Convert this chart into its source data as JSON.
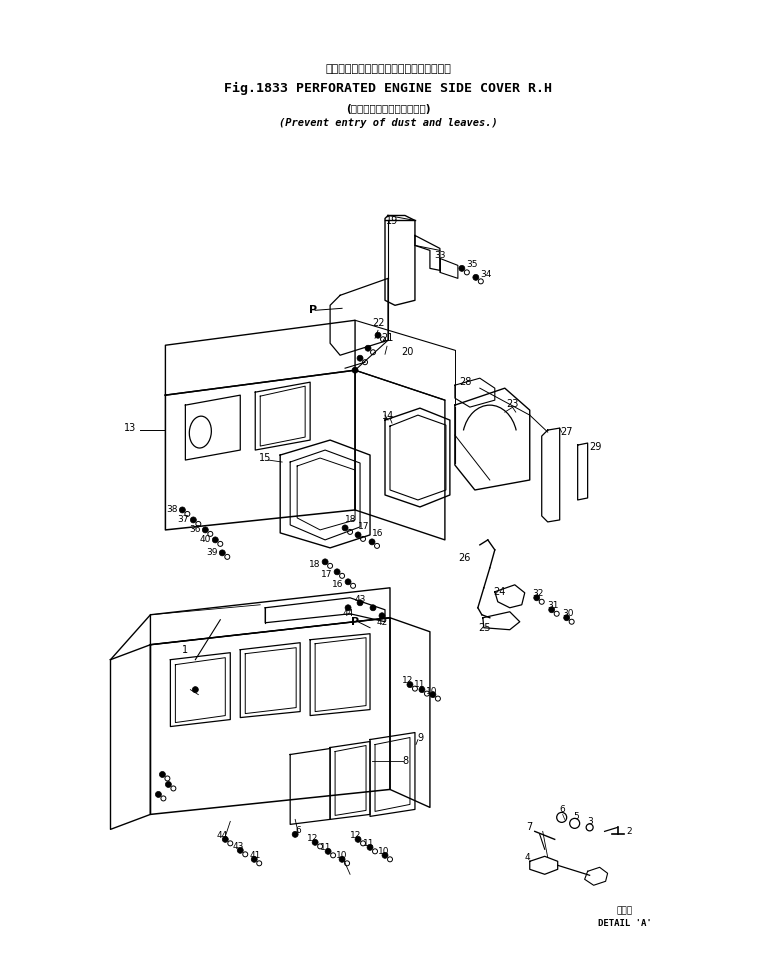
{
  "title_japanese": "小丸穴付　エンジン　サイド　カバー　右",
  "title_main": "Fig.1833 PERFORATED ENGINE SIDE COVER R.H",
  "subtitle_japanese": "(ごみ、木の葉の進入防止用)",
  "subtitle_english": "(Prevent entry of dust and leaves.)",
  "detail_label_jp": "詳　図",
  "detail_label_en": "DETAIL 'A'",
  "bg_color": "#ffffff",
  "font_color": "#000000",
  "fig_width": 7.76,
  "fig_height": 9.57,
  "dpi": 100
}
